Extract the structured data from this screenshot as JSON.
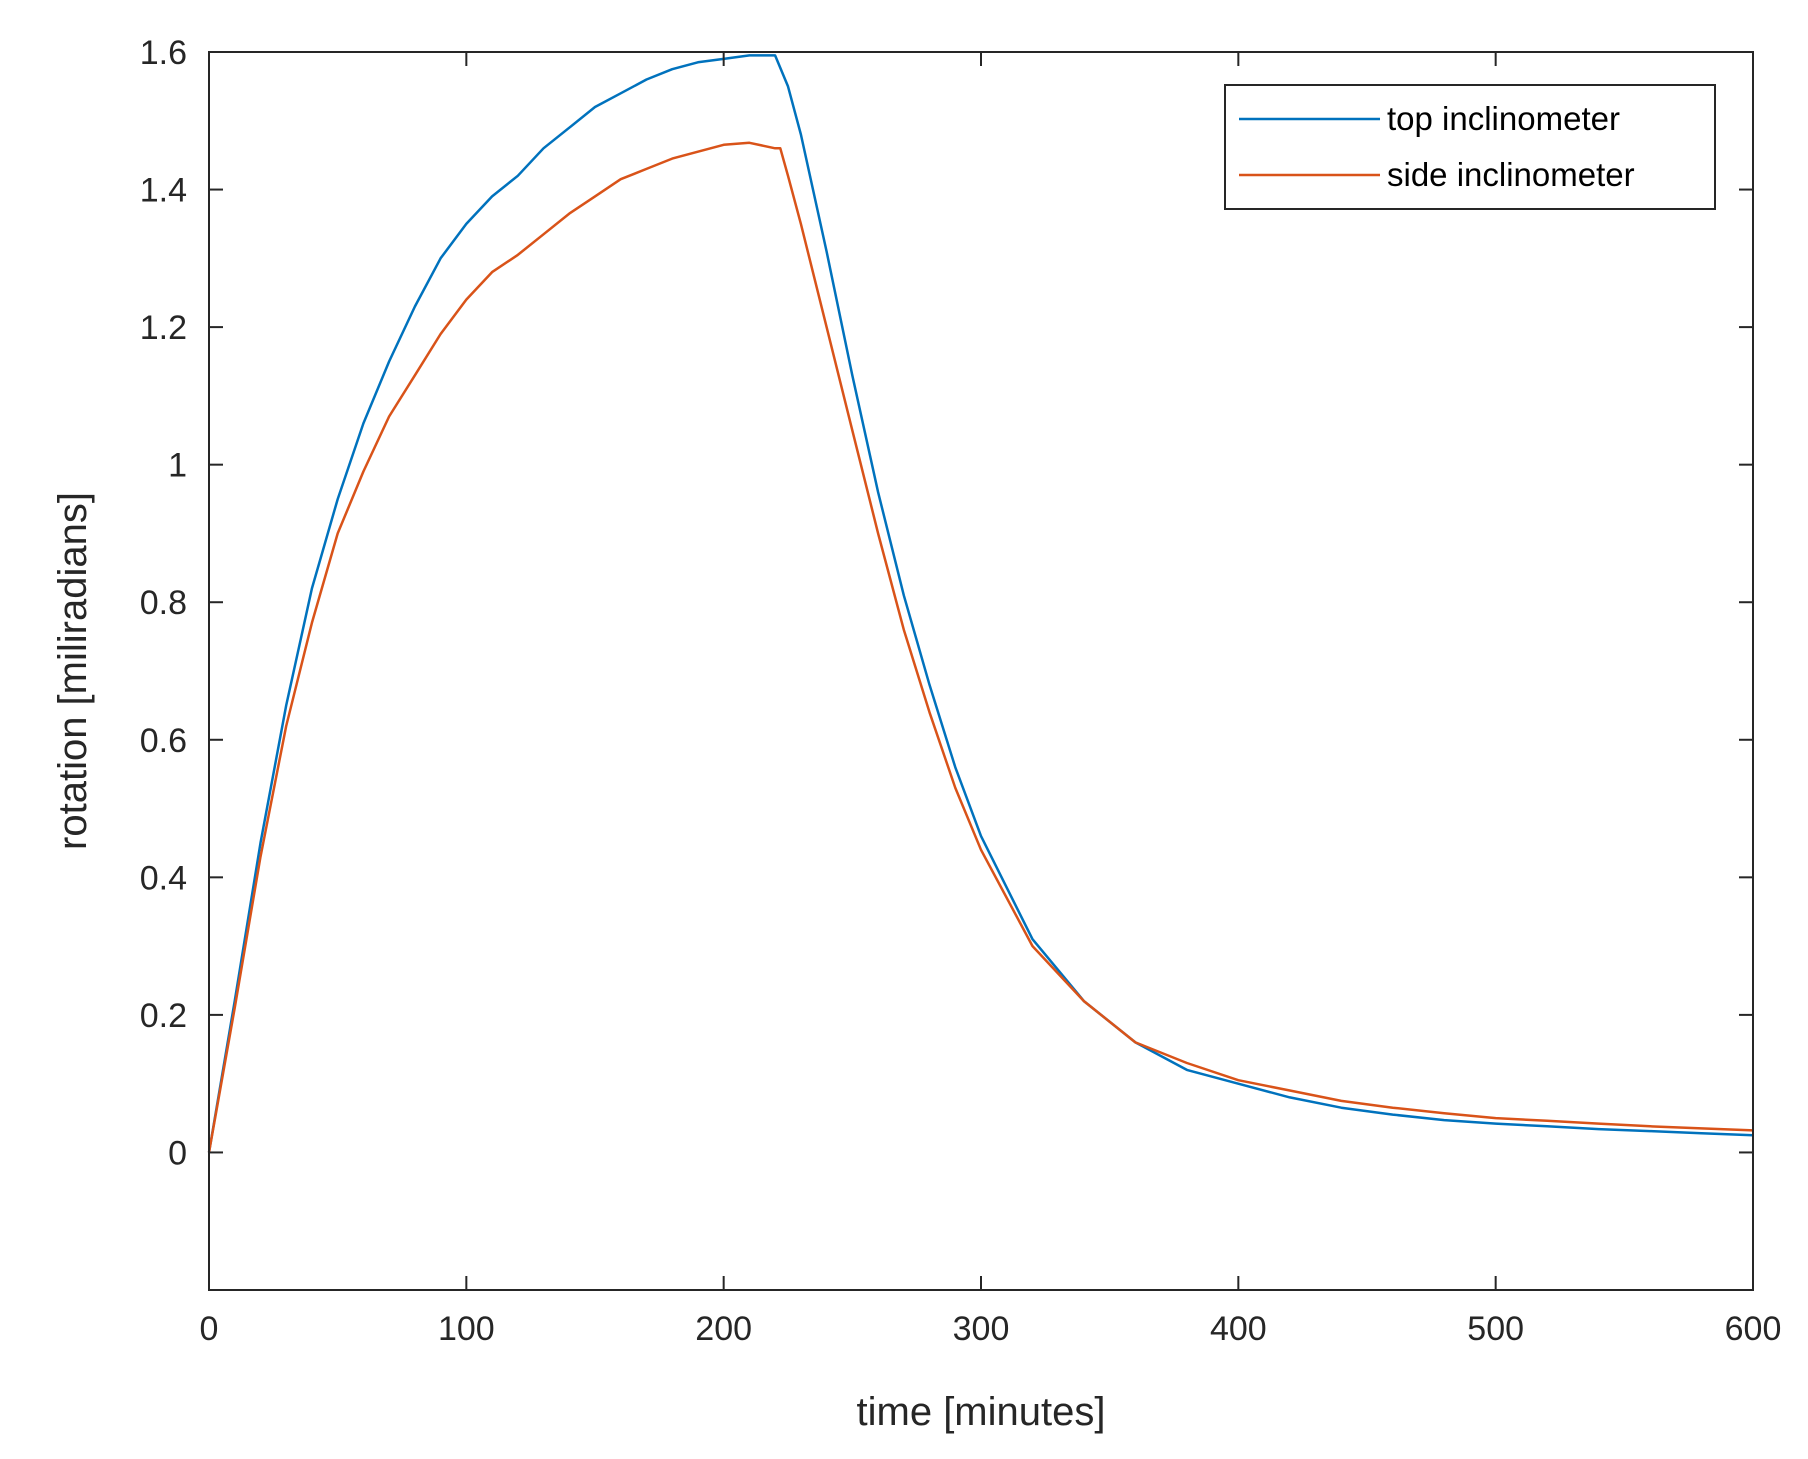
{
  "chart_data": {
    "type": "line",
    "title": "",
    "xlabel": "time [minutes]",
    "ylabel": "rotation [miliradians]",
    "xlim": [
      0,
      600
    ],
    "ylim": [
      -0.2,
      1.6
    ],
    "xticks": [
      0,
      100,
      200,
      300,
      400,
      500,
      600
    ],
    "xtick_labels": [
      "0",
      "100",
      "200",
      "300",
      "400",
      "500",
      "600"
    ],
    "yticks": [
      0,
      0.2,
      0.4,
      0.6,
      0.8,
      1,
      1.2,
      1.4,
      1.6
    ],
    "ytick_labels": [
      "0",
      "0.2",
      "0.4",
      "0.6",
      "0.8",
      "1",
      "1.2",
      "1.4",
      "1.6"
    ],
    "grid": false,
    "legend_position": "top-right",
    "series": [
      {
        "name": "top inclinometer",
        "color": "#0072BD",
        "x": [
          0,
          10,
          20,
          30,
          40,
          50,
          60,
          70,
          80,
          90,
          100,
          110,
          120,
          130,
          140,
          150,
          160,
          170,
          180,
          190,
          200,
          210,
          220,
          225,
          230,
          240,
          250,
          260,
          270,
          280,
          290,
          300,
          320,
          340,
          360,
          380,
          400,
          420,
          440,
          460,
          480,
          500,
          520,
          540,
          560,
          580,
          600
        ],
        "y": [
          0,
          0.22,
          0.45,
          0.65,
          0.82,
          0.95,
          1.06,
          1.15,
          1.23,
          1.3,
          1.35,
          1.39,
          1.42,
          1.46,
          1.49,
          1.52,
          1.54,
          1.56,
          1.575,
          1.585,
          1.59,
          1.595,
          1.595,
          1.55,
          1.48,
          1.31,
          1.13,
          0.96,
          0.81,
          0.68,
          0.56,
          0.46,
          0.31,
          0.22,
          0.16,
          0.12,
          0.1,
          0.08,
          0.065,
          0.055,
          0.047,
          0.042,
          0.038,
          0.034,
          0.031,
          0.028,
          0.025
        ]
      },
      {
        "name": "side inclinometer",
        "color": "#D95319",
        "x": [
          0,
          10,
          20,
          30,
          40,
          50,
          60,
          70,
          80,
          90,
          100,
          110,
          120,
          130,
          140,
          150,
          160,
          170,
          180,
          190,
          200,
          210,
          220,
          222,
          225,
          230,
          240,
          250,
          260,
          270,
          280,
          290,
          300,
          320,
          340,
          360,
          380,
          400,
          420,
          440,
          460,
          480,
          500,
          520,
          540,
          560,
          580,
          600
        ],
        "y": [
          0,
          0.21,
          0.43,
          0.62,
          0.77,
          0.9,
          0.99,
          1.07,
          1.13,
          1.19,
          1.24,
          1.28,
          1.305,
          1.335,
          1.365,
          1.39,
          1.415,
          1.43,
          1.445,
          1.455,
          1.465,
          1.468,
          1.46,
          1.46,
          1.42,
          1.35,
          1.2,
          1.05,
          0.9,
          0.76,
          0.64,
          0.53,
          0.44,
          0.3,
          0.22,
          0.16,
          0.13,
          0.105,
          0.09,
          0.075,
          0.065,
          0.057,
          0.05,
          0.046,
          0.042,
          0.038,
          0.035,
          0.032
        ]
      }
    ]
  }
}
